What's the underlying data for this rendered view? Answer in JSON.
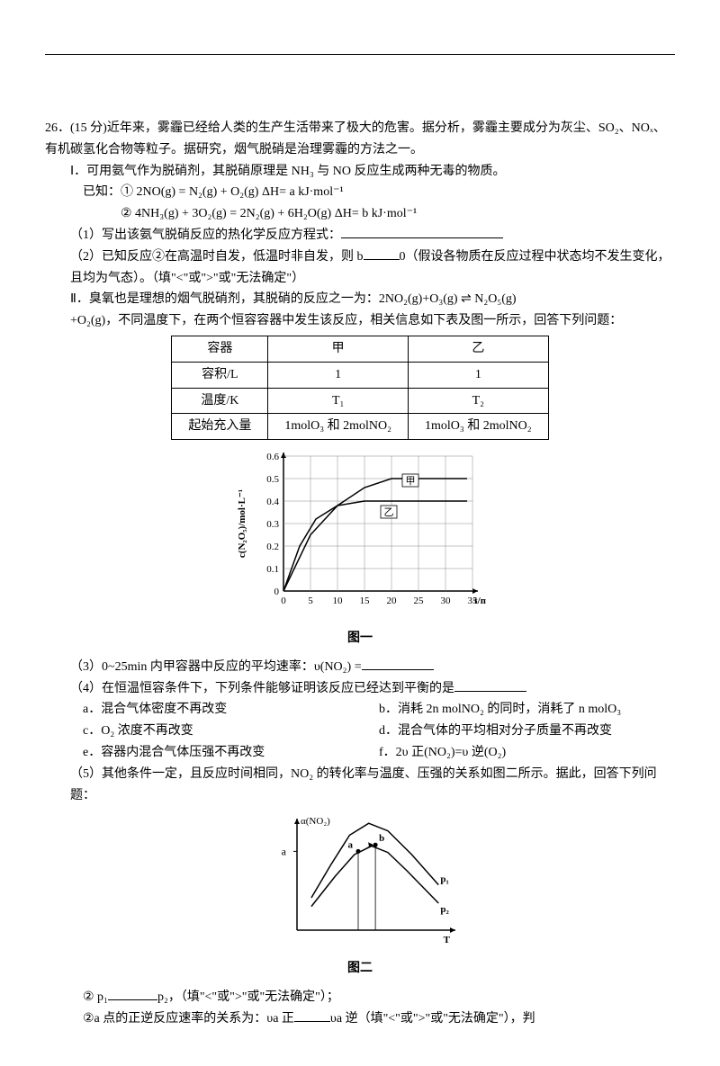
{
  "q": {
    "num": "26．",
    "points": "(15 分)",
    "intro": "近年来，雾霾已经给人类的生产生活带来了极大的危害。据分析，雾霾主要成分为灰尘、SO₂、NOₓ、有机碳氢化合物等粒子。据研究，烟气脱硝是治理雾霾的方法之一。",
    "partI": {
      "label": "Ⅰ．",
      "text": "可用氨气作为脱硝剂，其脱硝原理是 NH₃ 与 NO 反应生成两种无毒的物质。",
      "known_label": "已知：",
      "eq1": "① 2NO(g) = N₂(g) + O₂(g)    ΔH= a kJ·mol⁻¹",
      "eq2": "② 4NH₃(g) + 3O₂(g) = 2N₂(g) + 6H₂O(g)    ΔH= b kJ·mol⁻¹",
      "sub1": "（1）写出该氨气脱硝反应的热化学反应方程式：",
      "sub2a": "（2）已知反应②在高温时自发，低温时非自发，则 b",
      "sub2b": "0（假设各物质在反应过程中状态均不发生变化，且均为气态）。（填\"<\"或\">\"或\"无法确定\"）"
    },
    "partII": {
      "label": "Ⅱ．",
      "text1": "臭氧也是理想的烟气脱硝剂，其脱硝的反应之一为：2NO₂(g)+O₃(g) ⇌ N₂O₅(g)",
      "text2": "+O₂(g)，不同温度下，在两个恒容容器中发生该反应，相关信息如下表及图一所示，回答下列问题：",
      "table": {
        "h1": "容器",
        "h2": "甲",
        "h3": "乙",
        "r1c1": "容积/L",
        "r1c2": "1",
        "r1c3": "1",
        "r2c1": "温度/K",
        "r2c2": "T₁",
        "r2c3": "T₂",
        "r3c1": "起始充入量",
        "r3c2": "1molO₃ 和 2molNO₂",
        "r3c3": "1molO₃ 和 2molNO₂"
      }
    },
    "chart1": {
      "ylabel": "c(N₂O₅)/mol·L⁻¹",
      "xlabel": "t/min",
      "caption": "图一",
      "y_ticks": [
        0,
        0.1,
        0.2,
        0.3,
        0.4,
        0.5,
        0.6
      ],
      "x_ticks": [
        0,
        5,
        10,
        15,
        20,
        25,
        30,
        35
      ],
      "ylim": [
        0,
        0.6
      ],
      "xlim": [
        0,
        35
      ],
      "series": {
        "jia": {
          "label": "甲",
          "points": [
            [
              0,
              0
            ],
            [
              5,
              0.25
            ],
            [
              10,
              0.38
            ],
            [
              15,
              0.46
            ],
            [
              20,
              0.5
            ],
            [
              25,
              0.5
            ],
            [
              30,
              0.5
            ],
            [
              34,
              0.5
            ]
          ],
          "color": "#000000",
          "width": 1.5
        },
        "yi": {
          "label": "乙",
          "points": [
            [
              0,
              0
            ],
            [
              3,
              0.2
            ],
            [
              6,
              0.32
            ],
            [
              10,
              0.38
            ],
            [
              15,
              0.4
            ],
            [
              20,
              0.4
            ],
            [
              25,
              0.4
            ],
            [
              30,
              0.4
            ],
            [
              34,
              0.4
            ]
          ],
          "color": "#000000",
          "width": 1.5
        }
      },
      "grid_color": "#888888",
      "bg": "#ffffff"
    },
    "sub3": "（3）0~25min 内甲容器中反应的平均速率：υ(NO₂) =",
    "sub4": {
      "stem": "（4）在恒温恒容条件下，下列条件能够证明该反应已经达到平衡的是",
      "a": "a．混合气体密度不再改变",
      "b": "b．消耗 2n molNO₂ 的同时，消耗了 n molO₃",
      "c": "c．O₂ 浓度不再改变",
      "d": "d．混合气体的平均相对分子质量不再改变",
      "e": "e．容器内混合气体压强不再改变",
      "f": "f．2υ 正(NO₂)=υ 逆(O₂)"
    },
    "sub5": "（5）其他条件一定，且反应时间相同，NO₂ 的转化率与温度、压强的关系如图二所示。据此，回答下列问题：",
    "chart2": {
      "ylabel": "α(NO₂)",
      "xlabel": "T",
      "caption": "图二",
      "label_a": "a",
      "pt_a": "a",
      "pt_b": "b",
      "p1": "p₁",
      "p2": "p₂",
      "curve_color": "#000000",
      "bg": "#ffffff",
      "curves": {
        "outer": [
          [
            15,
            30
          ],
          [
            35,
            60
          ],
          [
            55,
            88
          ],
          [
            75,
            99
          ],
          [
            95,
            92
          ],
          [
            120,
            70
          ],
          [
            148,
            42
          ]
        ],
        "inner": [
          [
            15,
            22
          ],
          [
            40,
            50
          ],
          [
            60,
            70
          ],
          [
            78,
            78
          ],
          [
            95,
            72
          ],
          [
            115,
            55
          ],
          [
            148,
            25
          ]
        ]
      },
      "a_x": 64,
      "b_x": 82
    },
    "q5_1a": "②  p₁",
    "q5_1b": "p₂，（填\"<\"或\">\"或\"无法确定\"）；",
    "q5_2a": "②a 点的正逆反应速率的关系为：υa 正",
    "q5_2b": "υa 逆（填\"<\"或\">\"或\"无法确定\"），判"
  }
}
